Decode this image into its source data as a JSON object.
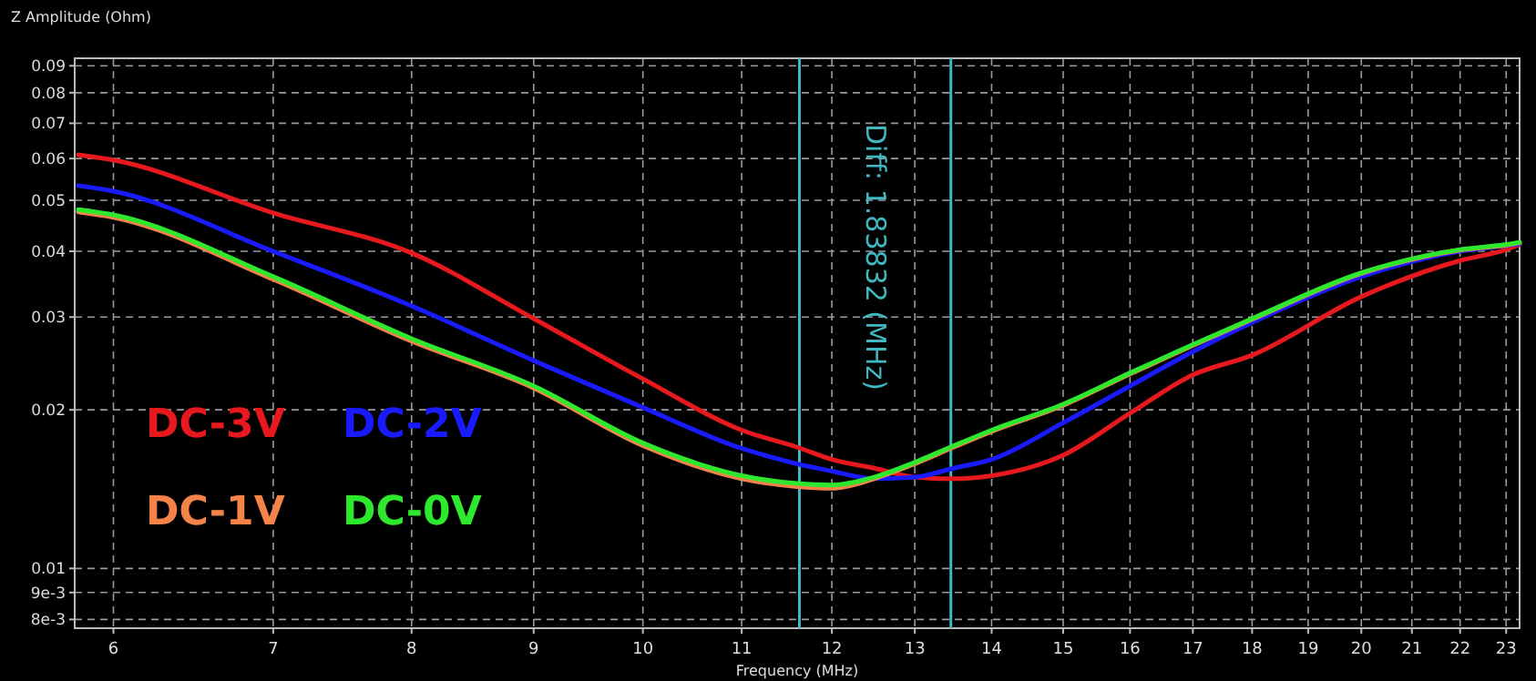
{
  "chart_data": {
    "type": "line",
    "xlabel": "Frequency (MHz)",
    "ylabel": "Z Amplitude (Ohm)",
    "x": [
      5.8,
      6,
      7,
      8,
      9,
      10,
      11,
      11.6,
      12,
      12.5,
      13,
      13.5,
      14,
      15,
      16,
      17,
      18,
      20,
      22,
      23,
      23.3
    ],
    "series": [
      {
        "name": "DC-3V",
        "color": "#e8191e",
        "values": [
          0.061,
          0.0596,
          0.0473,
          0.0397,
          0.0298,
          0.0229,
          0.0183,
          0.017,
          0.0161,
          0.0155,
          0.0149,
          0.0148,
          0.015,
          0.0164,
          0.0197,
          0.0233,
          0.0254,
          0.0328,
          0.0384,
          0.0403,
          0.0412
        ]
      },
      {
        "name": "DC-2V",
        "color": "#1a1aff",
        "values": [
          0.0533,
          0.052,
          0.04,
          0.0315,
          0.0248,
          0.0202,
          0.0169,
          0.0158,
          0.0153,
          0.0148,
          0.0149,
          0.0155,
          0.0161,
          0.0189,
          0.0222,
          0.0258,
          0.0293,
          0.0358,
          0.04,
          0.041,
          0.0413
        ]
      },
      {
        "name": "DC-1V",
        "color": "#f4834a",
        "values": [
          0.0475,
          0.0464,
          0.0354,
          0.027,
          0.022,
          0.0171,
          0.0148,
          0.0143,
          0.0142,
          0.0148,
          0.0158,
          0.017,
          0.0182,
          0.0204,
          0.0234,
          0.0265,
          0.0297,
          0.0363,
          0.0402,
          0.0411,
          0.0415
        ]
      },
      {
        "name": "DC-0V",
        "color": "#2ee82e",
        "values": [
          0.048,
          0.0469,
          0.0358,
          0.0273,
          0.0222,
          0.0173,
          0.015,
          0.0145,
          0.0144,
          0.0149,
          0.0159,
          0.0171,
          0.0183,
          0.0205,
          0.0235,
          0.0266,
          0.0298,
          0.0364,
          0.0403,
          0.0412,
          0.0416
        ]
      }
    ],
    "log": "xy",
    "xlim": [
      5.78,
      23.3
    ],
    "ylim": [
      0.0077,
      0.093
    ],
    "xticks": [
      6,
      7,
      8,
      9,
      10,
      11,
      12,
      13,
      14,
      15,
      16,
      17,
      18,
      19,
      20,
      21,
      22,
      23
    ],
    "yticks": [
      {
        "value": 0.008,
        "label": "8e-3"
      },
      {
        "value": 0.009,
        "label": "9e-3"
      },
      0.01,
      0.02,
      0.03,
      0.04,
      0.05,
      0.06,
      0.07,
      0.08,
      0.09
    ],
    "grid": true,
    "legend": "left",
    "line_style": "solid",
    "marker": "none",
    "ref_lines": [
      {
        "axis": "x",
        "value": 11.63,
        "color": "#3fb8c0"
      },
      {
        "axis": "x",
        "value": 13.46,
        "color": "#3fb8c0"
      }
    ],
    "annotations": [
      "Diff: 1.83832 (MHz)"
    ]
  }
}
